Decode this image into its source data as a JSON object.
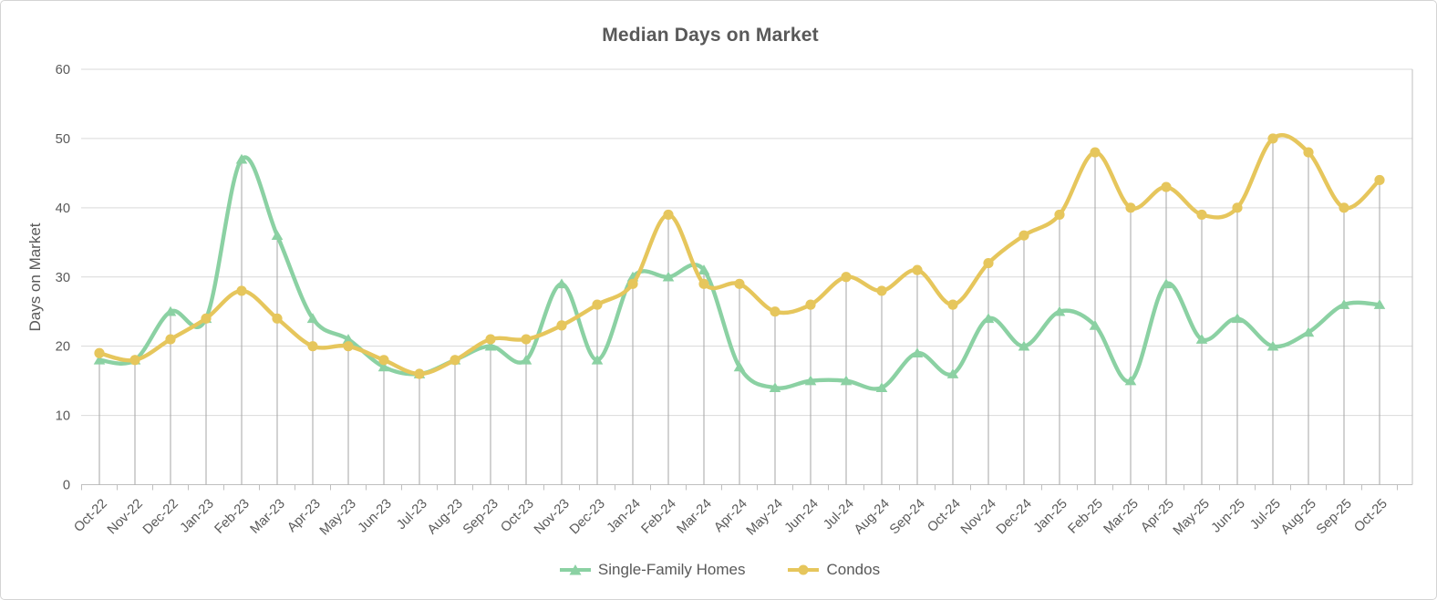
{
  "chart_data": {
    "type": "line",
    "title": "Median Days on Market",
    "xlabel": "",
    "ylabel": "Days on Market",
    "ylim": [
      0,
      60
    ],
    "yticks": [
      0,
      10,
      20,
      30,
      40,
      50,
      60
    ],
    "grid": true,
    "smooth_lines": true,
    "drop_lines": true,
    "legend_position": "bottom",
    "categories": [
      "Oct-22",
      "Nov-22",
      "Dec-22",
      "Jan-23",
      "Feb-23",
      "Mar-23",
      "Apr-23",
      "May-23",
      "Jun-23",
      "Jul-23",
      "Aug-23",
      "Sep-23",
      "Oct-23",
      "Nov-23",
      "Dec-23",
      "Jan-24",
      "Feb-24",
      "Mar-24",
      "Apr-24",
      "May-24",
      "Jun-24",
      "Jul-24",
      "Aug-24",
      "Sep-24",
      "Oct-24",
      "Nov-24",
      "Dec-24",
      "Jan-25",
      "Feb-25",
      "Mar-25",
      "Apr-25",
      "May-25",
      "Jun-25",
      "Jul-25",
      "Aug-25",
      "Sep-25",
      "Oct-25"
    ],
    "series": [
      {
        "name": "Single-Family Homes",
        "color": "#8BD1A3",
        "marker": "triangle",
        "values": [
          18,
          18,
          25,
          24,
          47,
          36,
          24,
          21,
          17,
          16,
          18,
          20,
          18,
          29,
          18,
          30,
          30,
          31,
          17,
          14,
          15,
          15,
          14,
          19,
          16,
          24,
          20,
          25,
          23,
          15,
          29,
          21,
          24,
          20,
          22,
          26,
          26
        ]
      },
      {
        "name": "Condos",
        "color": "#E6C65C",
        "marker": "circle",
        "values": [
          19,
          18,
          21,
          24,
          28,
          24,
          20,
          20,
          18,
          16,
          18,
          21,
          21,
          23,
          26,
          29,
          39,
          29,
          29,
          25,
          26,
          30,
          28,
          31,
          26,
          32,
          36,
          39,
          48,
          40,
          43,
          39,
          40,
          50,
          48,
          40,
          44
        ]
      }
    ],
    "style": {
      "gridline_color": "#D9D9D9",
      "axis_color": "#BFBFBF",
      "drop_line_color": "#A6A6A6",
      "text_color": "#595959",
      "background": "#FFFFFF",
      "border_color": "#D4D4D4"
    }
  }
}
